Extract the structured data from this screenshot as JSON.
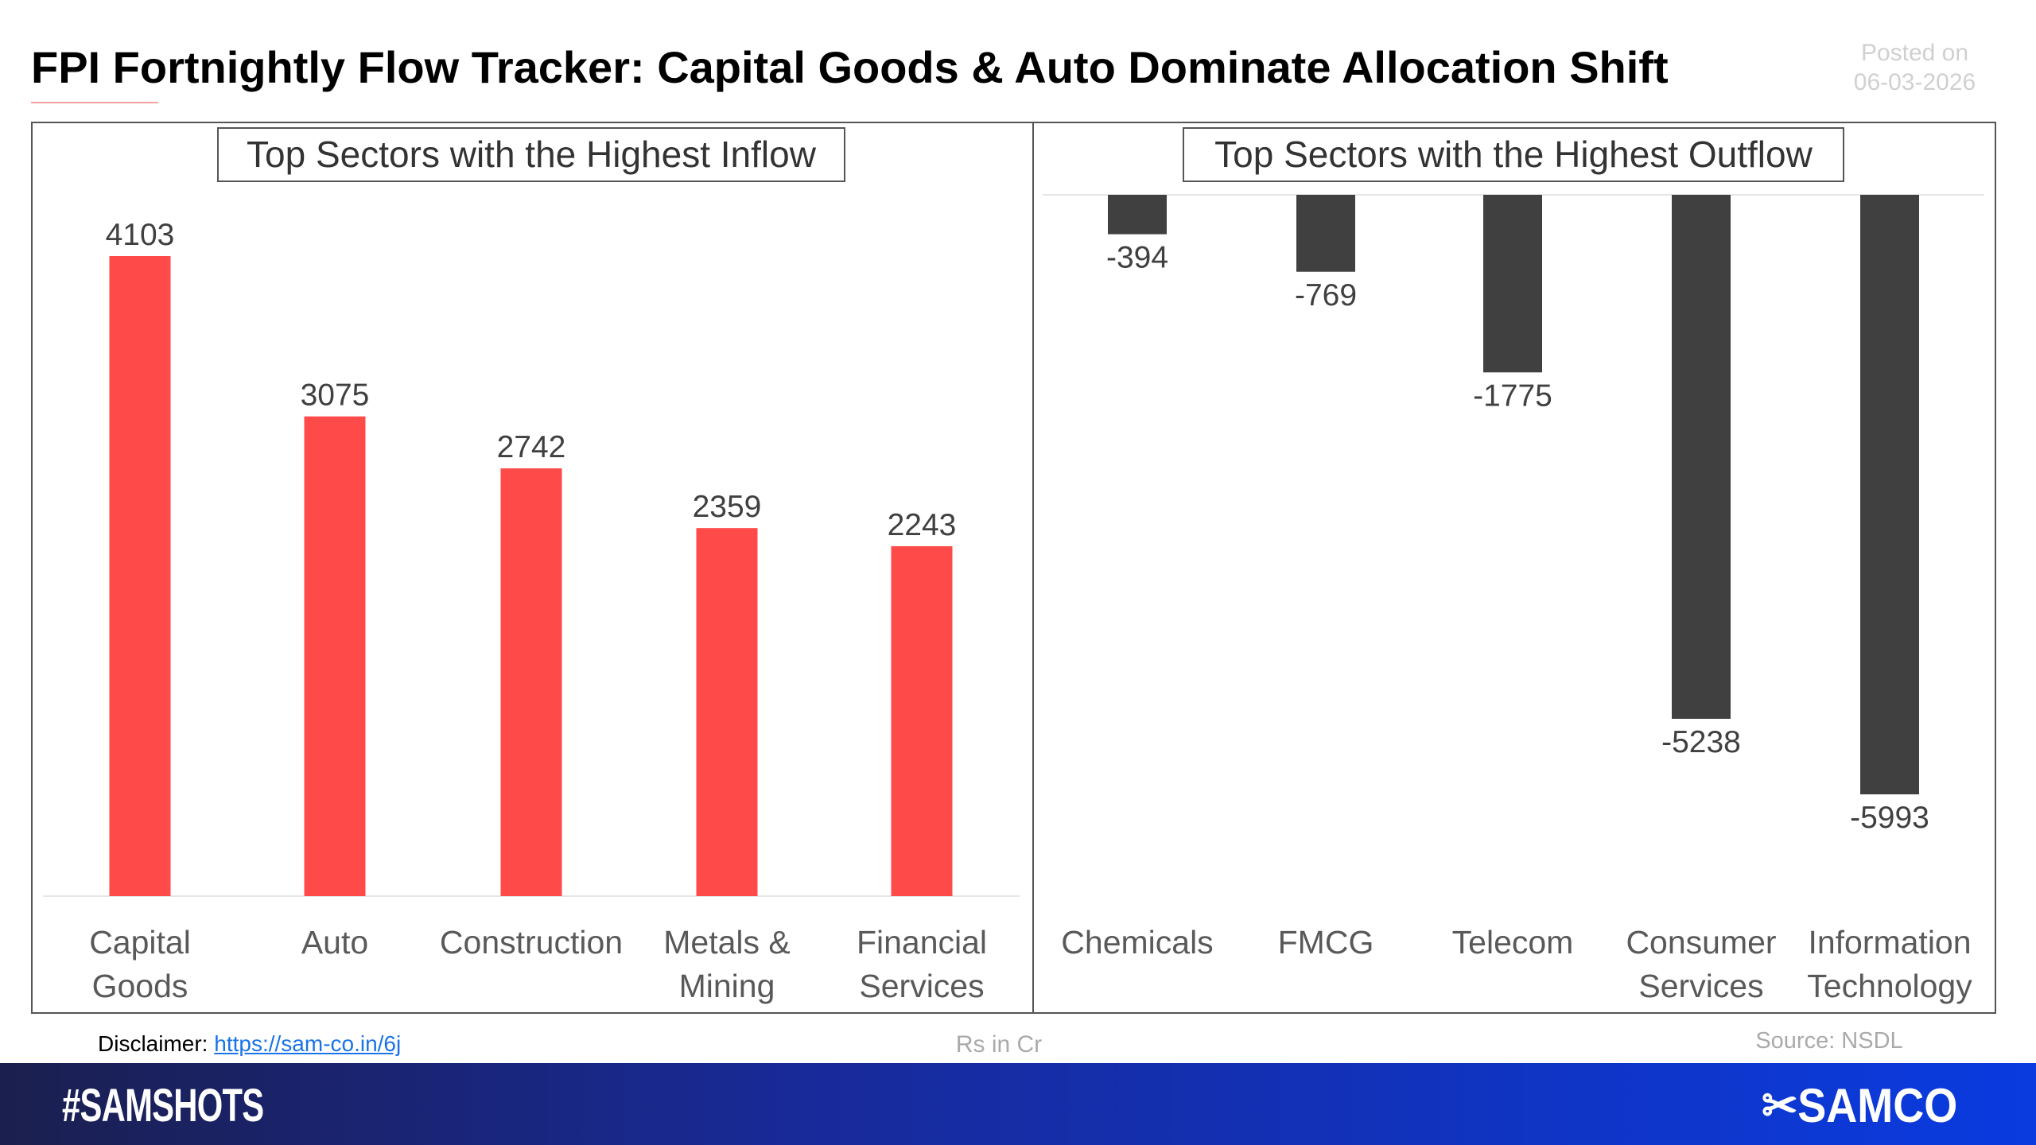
{
  "header": {
    "title": "FPI Fortnightly Flow Tracker: Capital Goods & Auto Dominate Allocation Shift",
    "posted_label": "Posted on",
    "posted_date": "06-03-2026"
  },
  "chart_data": [
    {
      "type": "bar",
      "title": "Top Sectors with the Highest Inflow",
      "categories": [
        [
          "Capital",
          "Goods"
        ],
        [
          "Auto"
        ],
        [
          "Construction"
        ],
        [
          "Metals &",
          "Mining"
        ],
        [
          "Financial",
          "Services"
        ]
      ],
      "values": [
        4103,
        3075,
        2742,
        2359,
        2243
      ],
      "labels": [
        "4103",
        "3075",
        "2742",
        "2359",
        "2243"
      ],
      "color": "#ff4a4a",
      "ylim": [
        0,
        4103
      ],
      "grid": false
    },
    {
      "type": "bar",
      "title": "Top Sectors with the Highest Outflow",
      "categories": [
        [
          "Chemicals"
        ],
        [
          "FMCG"
        ],
        [
          "Telecom"
        ],
        [
          "Consumer",
          "Services"
        ],
        [
          "Information",
          "Technology"
        ]
      ],
      "values": [
        -394,
        -769,
        -1775,
        -5238,
        -5993
      ],
      "labels": [
        "-394",
        "-769",
        "-1775",
        "-5238",
        "-5993"
      ],
      "color": "#404040",
      "ylim": [
        -5993,
        0
      ],
      "grid": false
    }
  ],
  "footer": {
    "disclaimer_label": "Disclaimer:",
    "disclaimer_link": "https://sam-co.in/6j",
    "units": "Rs in Cr",
    "source": "Source: NSDL",
    "hashtag": "#SAMSHOTS",
    "brand": "SAMCO"
  }
}
